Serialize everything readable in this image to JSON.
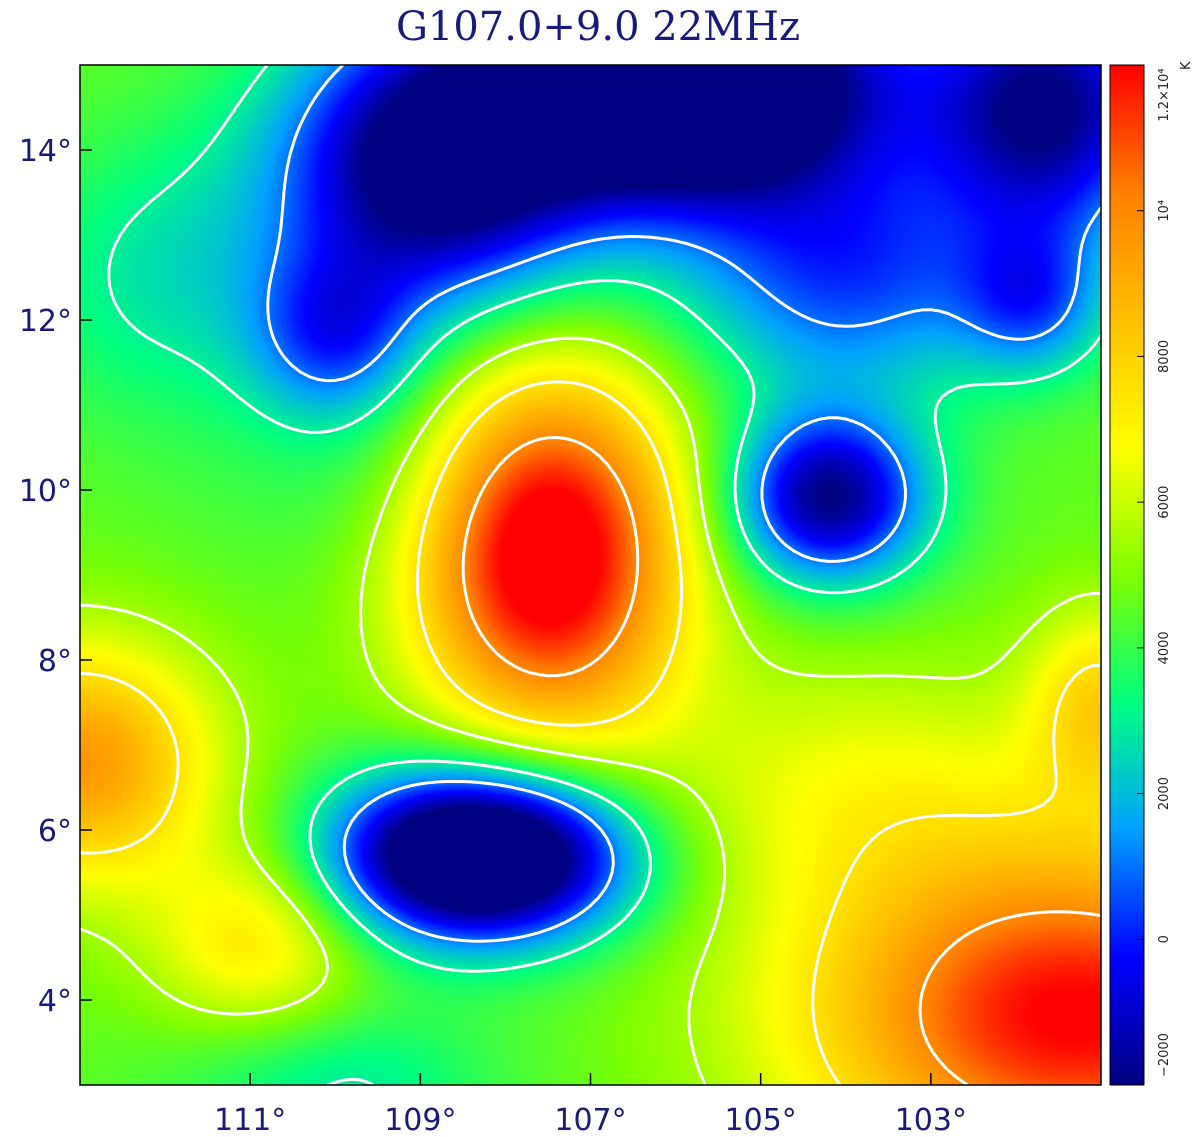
{
  "chart_data": {
    "type": "heatmap",
    "title": "G107.0+9.0 22MHz",
    "xlabel": "",
    "ylabel": "",
    "xlim": [
      113.0,
      101.0
    ],
    "ylim": [
      3.0,
      15.0
    ],
    "x_ticks": [
      {
        "value": 111,
        "label": "111°"
      },
      {
        "value": 109,
        "label": "109°"
      },
      {
        "value": 107,
        "label": "107°"
      },
      {
        "value": 105,
        "label": "105°"
      },
      {
        "value": 103,
        "label": "103°"
      }
    ],
    "y_ticks": [
      {
        "value": 14,
        "label": "14°"
      },
      {
        "value": 12,
        "label": "12°"
      },
      {
        "value": 10,
        "label": "10°"
      },
      {
        "value": 8,
        "label": "8°"
      },
      {
        "value": 6,
        "label": "6°"
      },
      {
        "value": 4,
        "label": "4°"
      }
    ],
    "colorbar": {
      "unit": "K",
      "range": [
        -2000,
        12000
      ],
      "ticks": [
        {
          "value": -2000,
          "label": "−2000"
        },
        {
          "value": 0,
          "label": "0"
        },
        {
          "value": 2000,
          "label": "2000"
        },
        {
          "value": 4000,
          "label": "4000"
        },
        {
          "value": 6000,
          "label": "6000"
        },
        {
          "value": 8000,
          "label": "8000"
        },
        {
          "value": 10000,
          "label": "10⁴"
        },
        {
          "value": 12000,
          "label": "1.2×10⁴"
        }
      ]
    },
    "contour_color": "#ffffff",
    "colormap": [
      "#000080",
      "#0000ff",
      "#00a0ff",
      "#00ff80",
      "#80ff00",
      "#ffff00",
      "#ffc000",
      "#ff8000",
      "#ff0000"
    ],
    "background_level": 4600,
    "features": [
      {
        "kind": "peak",
        "center": [
          107.5,
          9.3
        ],
        "sigma": [
          1.1,
          1.5
        ],
        "amp": 8800
      },
      {
        "kind": "trough",
        "center": [
          108.3,
          5.7
        ],
        "sigma": [
          1.2,
          0.7
        ],
        "amp": -10500
      },
      {
        "kind": "trough",
        "center": [
          104.2,
          9.9
        ],
        "sigma": [
          0.8,
          0.7
        ],
        "amp": -6600
      },
      {
        "kind": "trough",
        "center": [
          105.8,
          14.8
        ],
        "sigma": [
          1.6,
          1.0
        ],
        "amp": -11000
      },
      {
        "kind": "trough",
        "center": [
          101.6,
          14.5
        ],
        "sigma": [
          1.0,
          1.1
        ],
        "amp": -6500
      },
      {
        "kind": "trough",
        "center": [
          108.8,
          13.8
        ],
        "sigma": [
          1.3,
          1.2
        ],
        "amp": -7500
      },
      {
        "kind": "trough",
        "center": [
          110.0,
          11.8
        ],
        "sigma": [
          0.7,
          0.7
        ],
        "amp": -3500
      },
      {
        "kind": "trough",
        "center": [
          104.0,
          12.5
        ],
        "sigma": [
          1.4,
          1.0
        ],
        "amp": -4000
      },
      {
        "kind": "trough",
        "center": [
          101.8,
          12.2
        ],
        "sigma": [
          0.6,
          0.6
        ],
        "amp": -3000
      },
      {
        "kind": "trough",
        "center": [
          112.0,
          12.5
        ],
        "sigma": [
          1.2,
          1.2
        ],
        "amp": -1800
      },
      {
        "kind": "peak",
        "center": [
          113.0,
          6.8
        ],
        "sigma": [
          1.1,
          1.0
        ],
        "amp": 5000
      },
      {
        "kind": "peak",
        "center": [
          110.9,
          4.7
        ],
        "sigma": [
          0.9,
          0.8
        ],
        "amp": 2800
      },
      {
        "kind": "peak",
        "center": [
          101.3,
          3.8
        ],
        "sigma": [
          2.2,
          1.4
        ],
        "amp": 7500
      },
      {
        "kind": "peak",
        "center": [
          103.8,
          6.5
        ],
        "sigma": [
          1.8,
          1.1
        ],
        "amp": 1800
      },
      {
        "kind": "peak",
        "center": [
          101.0,
          7.5
        ],
        "sigma": [
          0.6,
          0.8
        ],
        "amp": 3000
      },
      {
        "kind": "trough",
        "center": [
          110.0,
          3.0
        ],
        "sigma": [
          1.3,
          0.7
        ],
        "amp": -1800
      },
      {
        "kind": "trough",
        "center": [
          109.2,
          10.2
        ],
        "sigma": [
          1.5,
          0.9
        ],
        "amp": -900
      }
    ],
    "contour_levels": [
      1000,
      3000,
      5500,
      7500,
      10000
    ]
  }
}
